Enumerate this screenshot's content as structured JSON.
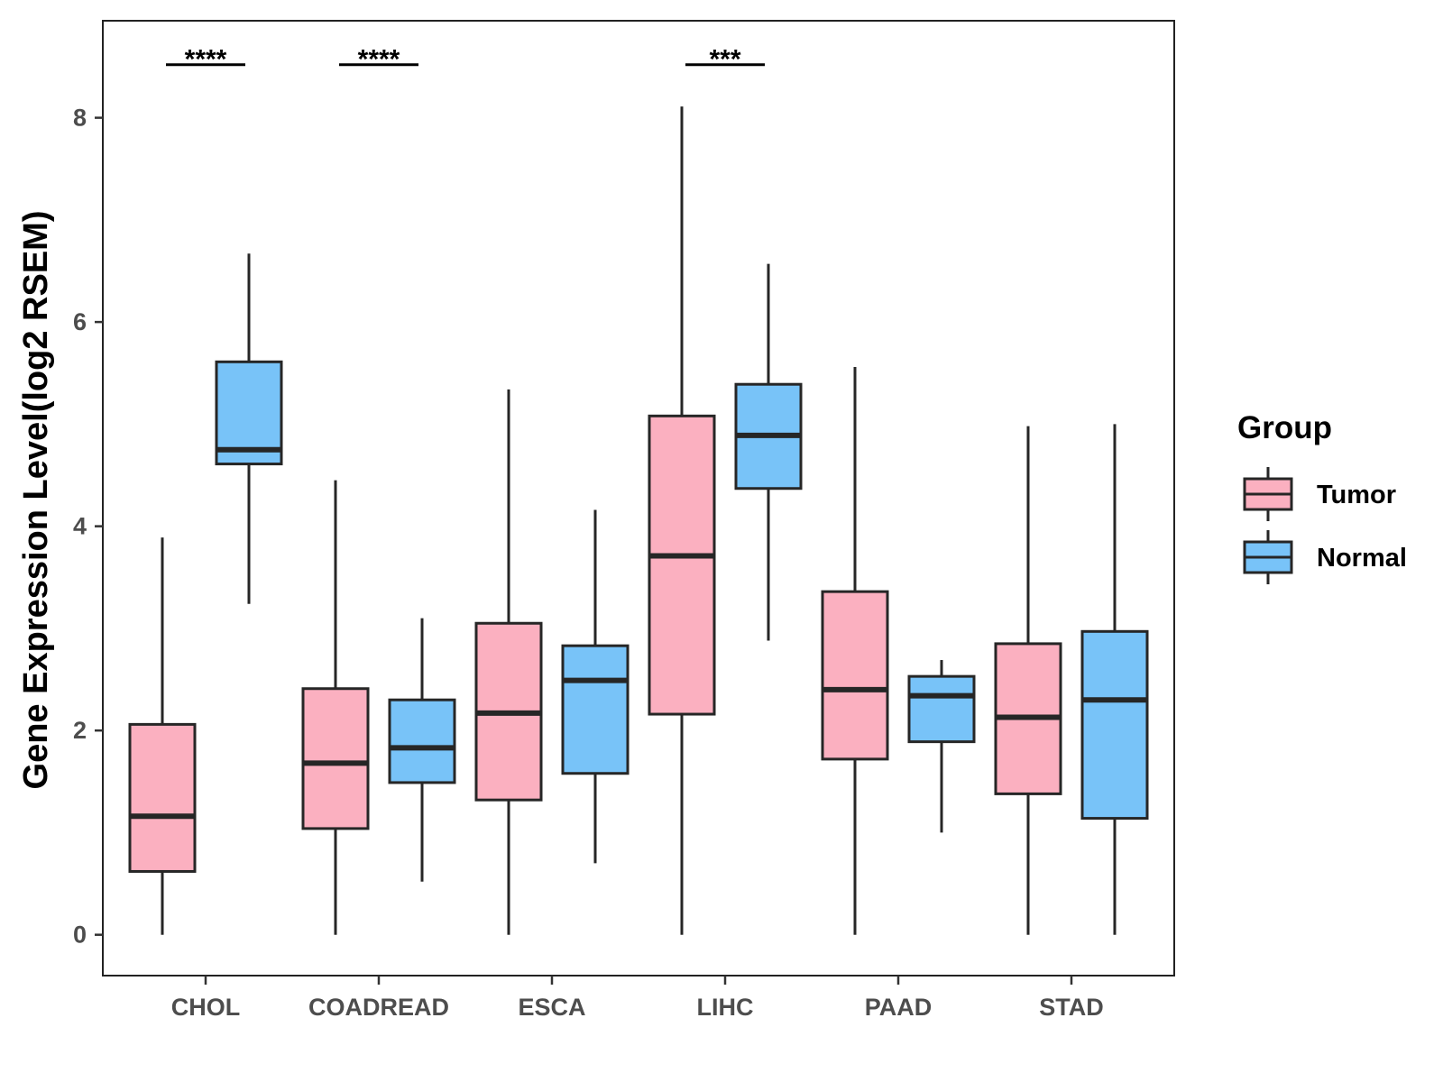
{
  "chart_data": {
    "type": "boxplot",
    "title": "",
    "xlabel": "",
    "ylabel": "Gene Expression Level(log2 RSEM)",
    "ylim": [
      -0.4,
      8.95
    ],
    "yticks": [
      0,
      2,
      4,
      6,
      8
    ],
    "categories": [
      "CHOL",
      "COADREAD",
      "ESCA",
      "LIHC",
      "PAAD",
      "STAD"
    ],
    "legend": {
      "title": "Group",
      "position": "right",
      "entries": [
        {
          "name": "Tumor",
          "color": "#fbb0c0"
        },
        {
          "name": "Normal",
          "color": "#78c3f8"
        }
      ]
    },
    "series": [
      {
        "name": "Tumor",
        "color": "#fbb0c0",
        "boxes": [
          {
            "category": "CHOL",
            "min": 0.0,
            "q1": 0.62,
            "median": 1.16,
            "q3": 2.06,
            "max": 3.89
          },
          {
            "category": "COADREAD",
            "min": 0.0,
            "q1": 1.04,
            "median": 1.68,
            "q3": 2.41,
            "max": 4.45
          },
          {
            "category": "ESCA",
            "min": 0.0,
            "q1": 1.32,
            "median": 2.17,
            "q3": 3.05,
            "max": 5.34
          },
          {
            "category": "LIHC",
            "min": 0.0,
            "q1": 2.16,
            "median": 3.71,
            "q3": 5.08,
            "max": 8.11
          },
          {
            "category": "PAAD",
            "min": 0.0,
            "q1": 1.72,
            "median": 2.4,
            "q3": 3.36,
            "max": 5.56
          },
          {
            "category": "STAD",
            "min": 0.0,
            "q1": 1.38,
            "median": 2.13,
            "q3": 2.85,
            "max": 4.98
          }
        ]
      },
      {
        "name": "Normal",
        "color": "#78c3f8",
        "boxes": [
          {
            "category": "CHOL",
            "min": 3.24,
            "q1": 4.61,
            "median": 4.75,
            "q3": 5.61,
            "max": 6.67
          },
          {
            "category": "COADREAD",
            "min": 0.52,
            "q1": 1.49,
            "median": 1.83,
            "q3": 2.3,
            "max": 3.1
          },
          {
            "category": "ESCA",
            "min": 0.7,
            "q1": 1.58,
            "median": 2.49,
            "q3": 2.83,
            "max": 4.16
          },
          {
            "category": "LIHC",
            "min": 2.88,
            "q1": 4.37,
            "median": 4.89,
            "q3": 5.39,
            "max": 6.57
          },
          {
            "category": "PAAD",
            "min": 1.0,
            "q1": 1.89,
            "median": 2.34,
            "q3": 2.53,
            "max": 2.69
          },
          {
            "category": "STAD",
            "min": 0.0,
            "q1": 1.14,
            "median": 2.3,
            "q3": 2.97,
            "max": 5.0
          }
        ]
      }
    ],
    "annotations": [
      {
        "category": "CHOL",
        "label": "****",
        "y": 8.52
      },
      {
        "category": "COADREAD",
        "label": "****",
        "y": 8.52
      },
      {
        "category": "LIHC",
        "label": "***",
        "y": 8.52
      }
    ]
  }
}
